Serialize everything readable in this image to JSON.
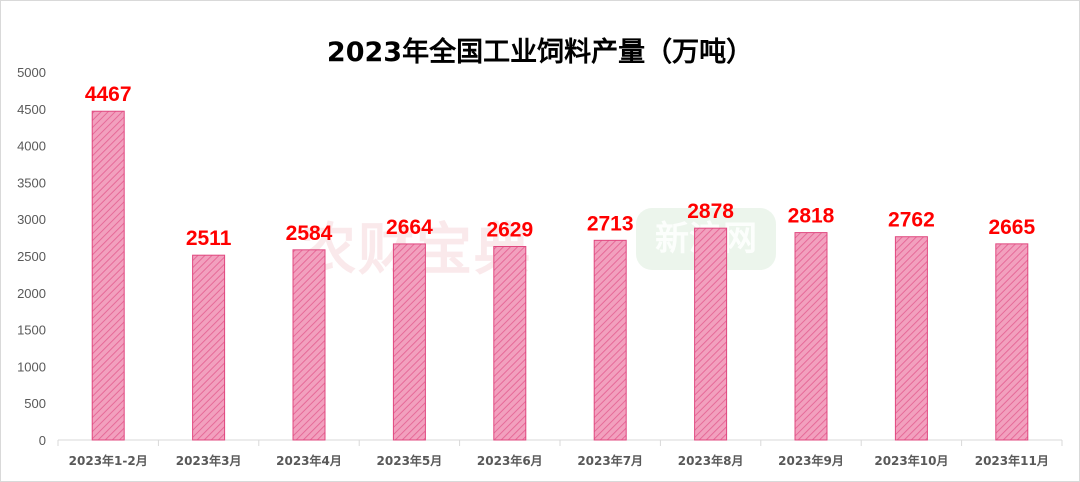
{
  "watermark": {
    "text": "农财宝典",
    "text2": "新浪网"
  },
  "colors": {
    "bar_fill": "#f2a0be",
    "bar_stroke": "#e0487f",
    "bar_hatch": "#e66a98",
    "data_label": "#ff0000",
    "axis": "#d9d9d9"
  },
  "chart_data": {
    "type": "bar",
    "title": "2023年全国工业饲料产量（万吨）",
    "xlabel": "",
    "ylabel": "",
    "categories": [
      "2023年1-2月",
      "2023年3月",
      "2023年4月",
      "2023年5月",
      "2023年6月",
      "2023年7月",
      "2023年8月",
      "2023年9月",
      "2023年10月",
      "2023年11月"
    ],
    "values": [
      4467,
      2511,
      2584,
      2664,
      2629,
      2713,
      2878,
      2818,
      2762,
      2665
    ],
    "ylim": [
      0,
      5000
    ],
    "yticks": [
      0,
      500,
      1000,
      1500,
      2000,
      2500,
      3000,
      3500,
      4000,
      4500,
      5000
    ],
    "grid": false,
    "legend": "none",
    "data_labels": true
  }
}
